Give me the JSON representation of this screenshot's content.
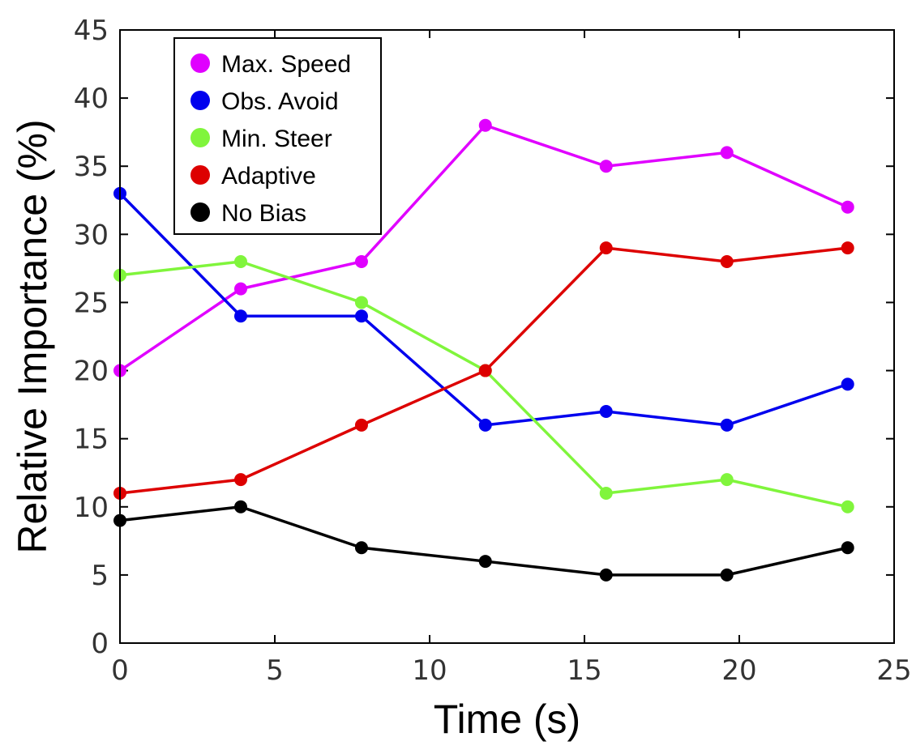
{
  "chart_data": {
    "type": "line",
    "title": "",
    "xlabel": "Time (s)",
    "ylabel": "Relative Importance (%)",
    "xlim": [
      0,
      25
    ],
    "ylim": [
      0,
      45
    ],
    "xticks": [
      "0",
      "5",
      "10",
      "15",
      "20",
      "25"
    ],
    "yticks": [
      "0",
      "5",
      "10",
      "15",
      "20",
      "25",
      "30",
      "35",
      "40",
      "45"
    ],
    "grid": false,
    "legend_position": "top-left",
    "x": [
      0,
      3.9,
      7.8,
      11.8,
      15.7,
      19.6,
      23.5
    ],
    "series": [
      {
        "name": "Max. Speed",
        "color": "#e000ff",
        "values": [
          20,
          26,
          28,
          38,
          35,
          36,
          32
        ]
      },
      {
        "name": "Obs. Avoid",
        "color": "#0000ee",
        "values": [
          33,
          24,
          24,
          16,
          17,
          16,
          19
        ]
      },
      {
        "name": "Min. Steer",
        "color": "#80f53c",
        "values": [
          27,
          28,
          25,
          20,
          11,
          12,
          10
        ]
      },
      {
        "name": "Adaptive",
        "color": "#dd0000",
        "values": [
          11,
          12,
          16,
          20,
          29,
          28,
          29
        ]
      },
      {
        "name": "No Bias",
        "color": "#000000",
        "values": [
          9,
          10,
          7,
          6,
          5,
          5,
          7
        ]
      }
    ]
  }
}
